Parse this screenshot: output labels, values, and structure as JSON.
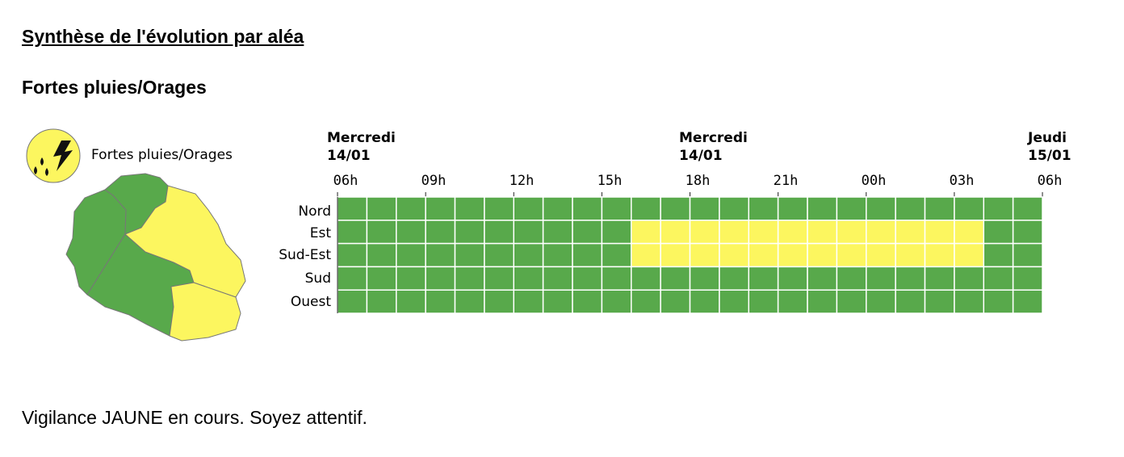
{
  "page": {
    "section_title": "Synthèse de l'évolution par aléa",
    "hazard_title": "Fortes pluies/Orages",
    "status_text": "Vigilance JAUNE en cours. Soyez attentif."
  },
  "map": {
    "legend_label": "Fortes pluies/Orages",
    "icon": "storm-rain-icon",
    "zone_colors": {
      "Nord": "#58a94b",
      "Ouest": "#58a94b",
      "Sud": "#58a94b",
      "Est": "#fcf65f",
      "Sud-Est": "#fcf65f"
    }
  },
  "timeline": {
    "days": [
      {
        "name": "Mercredi",
        "date": "14/01"
      },
      {
        "name": "Mercredi",
        "date": "14/01"
      },
      {
        "name": "Jeudi",
        "date": "15/01"
      }
    ],
    "hours": [
      "06h",
      "09h",
      "12h",
      "15h",
      "18h",
      "21h",
      "00h",
      "03h",
      "06h"
    ],
    "zones": [
      "Nord",
      "Est",
      "Sud-Est",
      "Sud",
      "Ouest"
    ],
    "slots_per_zone": 24,
    "colors": {
      "green": "#58a94b",
      "yellow": "#fcf65f"
    },
    "yellow_periods": [
      {
        "zone": "Est",
        "from": "16h",
        "to": "04h"
      },
      {
        "zone": "Sud-Est",
        "from": "16h",
        "to": "04h"
      }
    ]
  }
}
